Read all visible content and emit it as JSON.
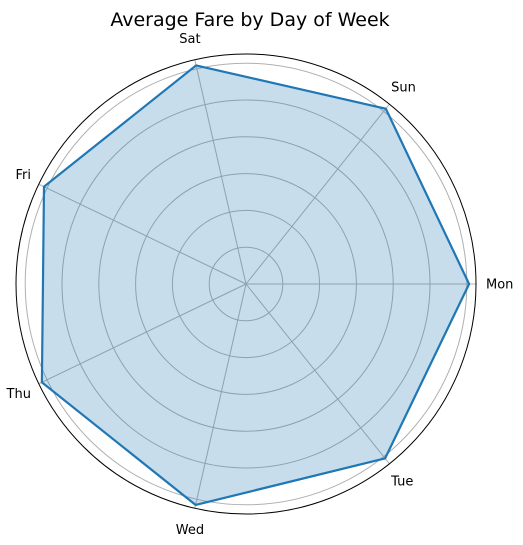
{
  "chart_data": {
    "type": "radar",
    "title": "Average Fare by Day of Week",
    "categories": [
      "Mon",
      "Sun",
      "Sat",
      "Fri",
      "Thu",
      "Wed",
      "Tue"
    ],
    "series": [
      {
        "values": [
          0.97,
          0.975,
          0.975,
          0.975,
          0.985,
          0.985,
          0.97
        ]
      }
    ],
    "radial_range": [
      0,
      1
    ],
    "radial_gridlines": [
      0.16,
      0.32,
      0.48,
      0.64,
      0.8,
      0.96
    ],
    "grid": true,
    "legend": "none",
    "colors": {
      "line": "#1f77b4",
      "fill": "#1f77b4",
      "fill_opacity": 0.25,
      "grid": "#b0b0b0",
      "frame": "#000000"
    }
  }
}
